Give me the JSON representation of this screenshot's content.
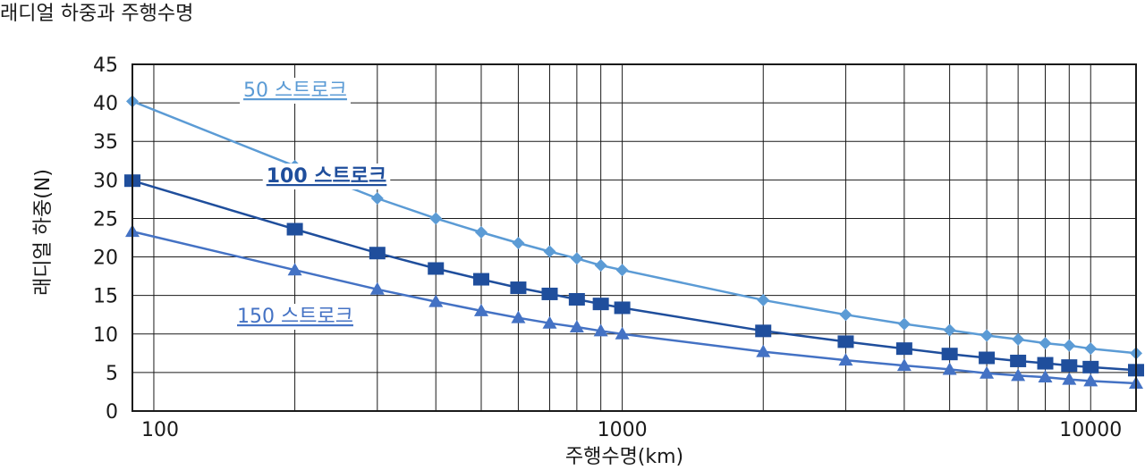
{
  "chart_data": {
    "type": "line",
    "title": "래디얼 하중과 주행수명",
    "xlabel": "주행수명(km)",
    "ylabel": "래디얼 하중(N)",
    "x_scale": "log",
    "xlim": [
      90,
      12500
    ],
    "ylim": [
      0,
      45
    ],
    "x_tick_labels": [
      "100",
      "1000",
      "10000"
    ],
    "y_ticks": [
      0,
      5,
      10,
      15,
      20,
      25,
      30,
      35,
      40,
      45
    ],
    "grid": true,
    "x": [
      90,
      200,
      300,
      400,
      500,
      600,
      700,
      800,
      900,
      1000,
      2000,
      3000,
      4000,
      5000,
      6000,
      7000,
      8000,
      9000,
      10000,
      12500
    ],
    "series": [
      {
        "name": "50 스트로크",
        "color": "#5b9bd5",
        "marker": "diamond",
        "values": [
          40.2,
          31.8,
          27.6,
          25.0,
          23.2,
          21.8,
          20.7,
          19.8,
          18.9,
          18.3,
          14.4,
          12.5,
          11.3,
          10.5,
          9.8,
          9.3,
          8.8,
          8.5,
          8.1,
          7.5
        ]
      },
      {
        "name": "100 스트로크",
        "color": "#1f4e9c",
        "marker": "square",
        "values": [
          29.9,
          23.6,
          20.5,
          18.5,
          17.1,
          16.0,
          15.2,
          14.5,
          13.9,
          13.4,
          10.4,
          9.0,
          8.1,
          7.4,
          6.9,
          6.5,
          6.2,
          5.9,
          5.7,
          5.3
        ]
      },
      {
        "name": "150 스트로크",
        "color": "#4472c4",
        "marker": "triangle",
        "values": [
          23.3,
          18.3,
          15.8,
          14.2,
          13.0,
          12.1,
          11.4,
          10.9,
          10.4,
          10.0,
          7.7,
          6.6,
          5.9,
          5.4,
          4.9,
          4.6,
          4.4,
          4.1,
          3.9,
          3.6
        ]
      }
    ]
  }
}
